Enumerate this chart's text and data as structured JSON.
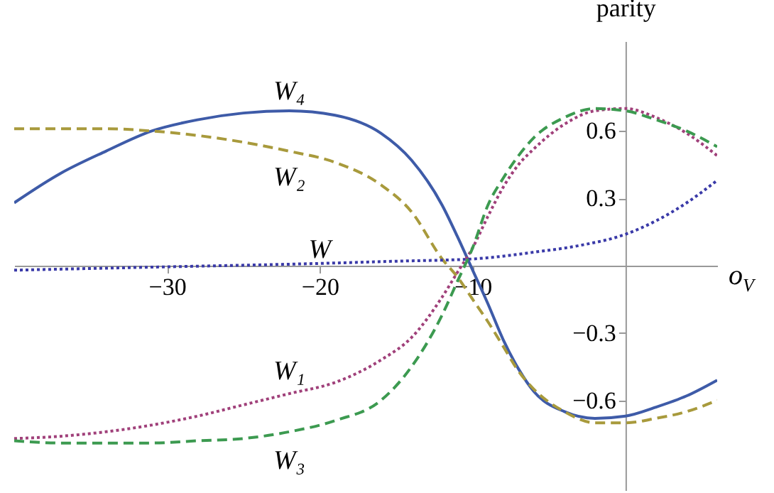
{
  "chart_data": {
    "type": "line",
    "xlabel": "o$_{V}$",
    "ylabel": "parity",
    "x": [
      -40,
      -37,
      -34,
      -31,
      -28,
      -25,
      -22,
      -19,
      -16,
      -14,
      -12,
      -11,
      -10,
      -9,
      -8,
      -7,
      -6,
      -4,
      -2,
      0,
      2,
      4,
      6
    ],
    "series": [
      {
        "name": "W₄",
        "color": "#3e5ba8",
        "line_style": "solid",
        "values": [
          0.28,
          0.41,
          0.51,
          0.6,
          0.65,
          0.68,
          0.69,
          0.67,
          0.59,
          0.47,
          0.27,
          0.13,
          -0.02,
          -0.17,
          -0.33,
          -0.46,
          -0.56,
          -0.65,
          -0.68,
          -0.67,
          -0.63,
          -0.58,
          -0.51
        ]
      },
      {
        "name": "W₂",
        "color": "#a89a3c",
        "line_style": "dashed",
        "values": [
          0.61,
          0.61,
          0.61,
          0.6,
          0.58,
          0.55,
          0.51,
          0.46,
          0.36,
          0.24,
          0.03,
          -0.05,
          -0.15,
          -0.25,
          -0.36,
          -0.47,
          -0.55,
          -0.65,
          -0.7,
          -0.7,
          -0.68,
          -0.65,
          -0.6
        ]
      },
      {
        "name": "W",
        "color": "#3a3aa8",
        "line_style": "dotted",
        "x": [
          -40,
          -30,
          -20,
          -15,
          -10,
          -6,
          -3,
          0,
          2,
          4,
          6
        ],
        "values": [
          -0.02,
          -0.005,
          0.01,
          0.02,
          0.03,
          0.06,
          0.09,
          0.14,
          0.2,
          0.28,
          0.38
        ]
      },
      {
        "name": "W₁",
        "color": "#a0407a",
        "line_style": "dotted",
        "values": [
          -0.77,
          -0.76,
          -0.74,
          -0.71,
          -0.67,
          -0.62,
          -0.57,
          -0.52,
          -0.42,
          -0.32,
          -0.14,
          -0.03,
          0.08,
          0.22,
          0.35,
          0.45,
          0.52,
          0.63,
          0.69,
          0.7,
          0.66,
          0.59,
          0.49
        ]
      },
      {
        "name": "W₃",
        "color": "#3c9a50",
        "line_style": "dashed",
        "values": [
          -0.78,
          -0.79,
          -0.79,
          -0.79,
          -0.78,
          -0.77,
          -0.74,
          -0.69,
          -0.6,
          -0.45,
          -0.22,
          -0.07,
          0.08,
          0.27,
          0.39,
          0.49,
          0.57,
          0.66,
          0.7,
          0.69,
          0.65,
          0.6,
          0.53
        ]
      }
    ],
    "xlim": [
      -40,
      6
    ],
    "ylim": [
      -1,
      1
    ],
    "xticks": [
      -30,
      -20,
      -10
    ],
    "yticks": [
      -0.6,
      -0.3,
      0.3,
      0.6
    ],
    "grid": false,
    "legend": false
  }
}
